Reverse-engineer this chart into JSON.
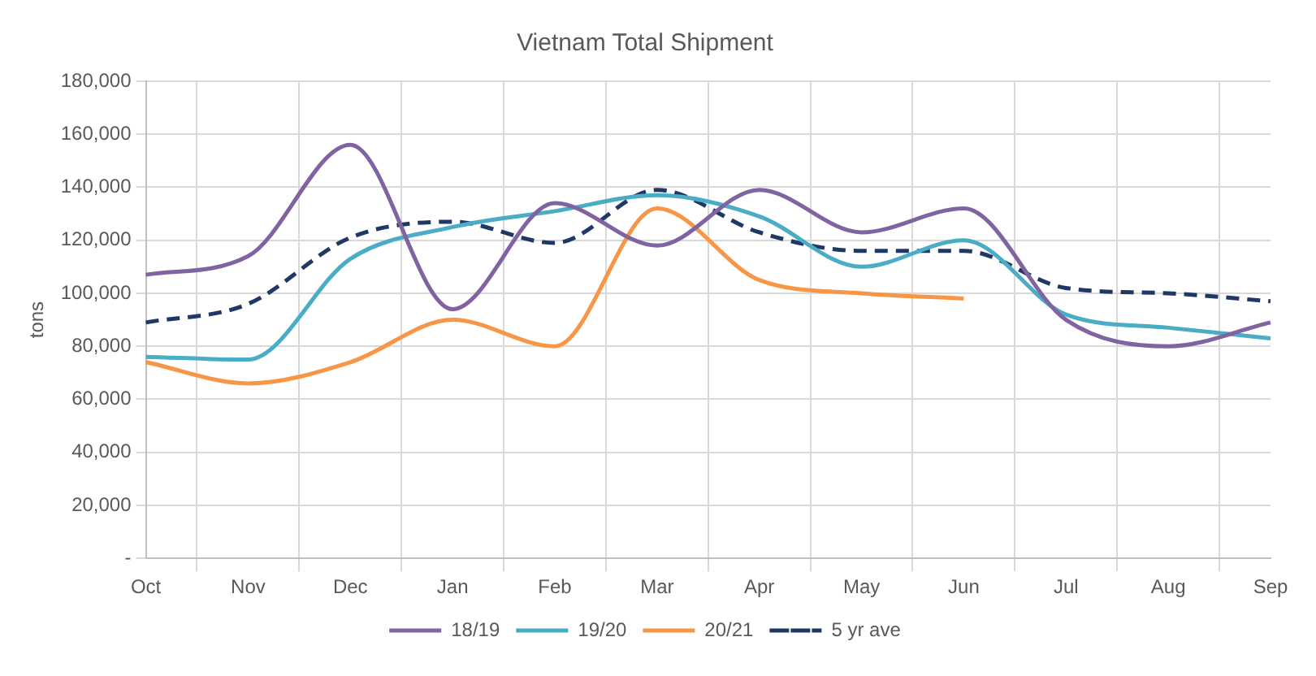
{
  "chart_data": {
    "type": "line",
    "title": "Vietnam Total Shipment",
    "ylabel": "tons",
    "categories": [
      "Oct",
      "Nov",
      "Dec",
      "Jan",
      "Feb",
      "Mar",
      "Apr",
      "May",
      "Jun",
      "Jul",
      "Aug",
      "Sep"
    ],
    "series": [
      {
        "name": "18/19",
        "color": "#8064a2",
        "values": [
          107000,
          114000,
          156000,
          94000,
          134000,
          118000,
          139000,
          123000,
          132000,
          90000,
          80000,
          89000
        ]
      },
      {
        "name": "19/20",
        "color": "#4bacc6",
        "values": [
          76000,
          75000,
          113000,
          125000,
          131000,
          137000,
          129000,
          110000,
          120000,
          92000,
          87000,
          83000
        ]
      },
      {
        "name": "20/21",
        "color": "#f79646",
        "values": [
          74000,
          66000,
          74000,
          90000,
          80000,
          132000,
          105000,
          100000,
          98000,
          null,
          null,
          null
        ]
      },
      {
        "name": "5 yr ave",
        "color": "#1f3864",
        "line_style": "dashed",
        "values": [
          89000,
          96000,
          121000,
          127000,
          119000,
          139000,
          123000,
          116000,
          116000,
          102000,
          100000,
          97000
        ]
      }
    ],
    "ylim": [
      0,
      180000
    ],
    "yticks": [
      {
        "value": 0,
        "label": "-"
      },
      {
        "value": 20000,
        "label": "20,000"
      },
      {
        "value": 40000,
        "label": "40,000"
      },
      {
        "value": 60000,
        "label": "60,000"
      },
      {
        "value": 80000,
        "label": "80,000"
      },
      {
        "value": 100000,
        "label": "100,000"
      },
      {
        "value": 120000,
        "label": "120,000"
      },
      {
        "value": 140000,
        "label": "140,000"
      },
      {
        "value": 160000,
        "label": "160,000"
      },
      {
        "value": 180000,
        "label": "180,000"
      }
    ],
    "grid": true,
    "legend": "bottom",
    "marker": "none"
  }
}
